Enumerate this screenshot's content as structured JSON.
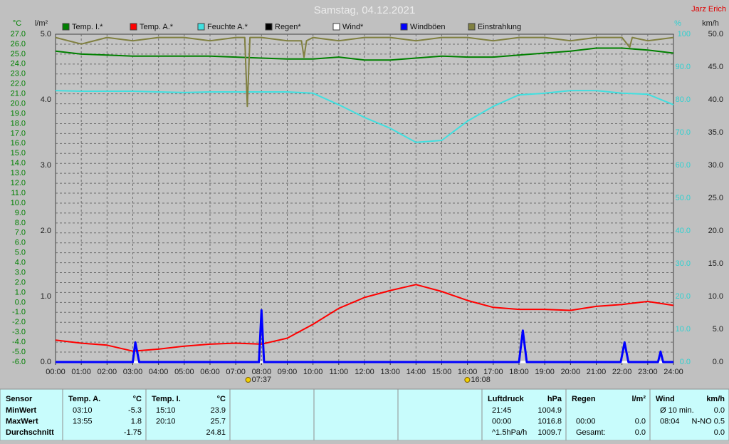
{
  "chart_data": {
    "type": "line",
    "title": "Samstag, 04.12.2021",
    "credit": "Jarz Erich",
    "ylabel": "°C",
    "y2label": "l/m²",
    "y3label": "%",
    "y4label": "km/h",
    "grid": true,
    "x": [
      0,
      1,
      2,
      3,
      4,
      5,
      6,
      7,
      8,
      9,
      10,
      11,
      12,
      13,
      14,
      15,
      16,
      17,
      18,
      19,
      20,
      21,
      22,
      23,
      24
    ],
    "xlim": [
      0,
      24
    ],
    "xticks": [
      {
        "value": 0,
        "label": "00:00"
      },
      {
        "value": 1,
        "label": "01:00"
      },
      {
        "value": 2,
        "label": "02:00"
      },
      {
        "value": 3,
        "label": "03:00"
      },
      {
        "value": 4,
        "label": "04:00"
      },
      {
        "value": 5,
        "label": "05:00"
      },
      {
        "value": 6,
        "label": "06:00"
      },
      {
        "value": 7,
        "label": "07:00"
      },
      {
        "value": 8,
        "label": "08:00"
      },
      {
        "value": 9,
        "label": "09:00"
      },
      {
        "value": 10,
        "label": "10:00"
      },
      {
        "value": 11,
        "label": "11:00"
      },
      {
        "value": 12,
        "label": "12:00"
      },
      {
        "value": 13,
        "label": "13:00"
      },
      {
        "value": 14,
        "label": "14:00"
      },
      {
        "value": 15,
        "label": "15:00"
      },
      {
        "value": 16,
        "label": "16:00"
      },
      {
        "value": 17,
        "label": "17:00"
      },
      {
        "value": 18,
        "label": "18:00"
      },
      {
        "value": 19,
        "label": "19:00"
      },
      {
        "value": 20,
        "label": "20:00"
      },
      {
        "value": 21,
        "label": "21:00"
      },
      {
        "value": 22,
        "label": "22:00"
      },
      {
        "value": 23,
        "label": "23:00"
      },
      {
        "value": 24,
        "label": "24:00"
      }
    ],
    "ylim": [
      -6,
      27
    ],
    "yticks": [
      {
        "value": 27,
        "label": "27.0"
      },
      {
        "value": 26,
        "label": "26.0"
      },
      {
        "value": 25,
        "label": "25.0"
      },
      {
        "value": 24,
        "label": "24.0"
      },
      {
        "value": 23,
        "label": "23.0"
      },
      {
        "value": 22,
        "label": "22.0"
      },
      {
        "value": 21,
        "label": "21.0"
      },
      {
        "value": 20,
        "label": "20.0"
      },
      {
        "value": 19,
        "label": "19.0"
      },
      {
        "value": 18,
        "label": "18.0"
      },
      {
        "value": 17,
        "label": "17.0"
      },
      {
        "value": 16,
        "label": "16.0"
      },
      {
        "value": 15,
        "label": "15.0"
      },
      {
        "value": 14,
        "label": "14.0"
      },
      {
        "value": 13,
        "label": "13.0"
      },
      {
        "value": 12,
        "label": "12.0"
      },
      {
        "value": 11,
        "label": "11.0"
      },
      {
        "value": 10,
        "label": "10.0"
      },
      {
        "value": 9,
        "label": "9.0"
      },
      {
        "value": 8,
        "label": "8.0"
      },
      {
        "value": 7,
        "label": "7.0"
      },
      {
        "value": 6,
        "label": "6.0"
      },
      {
        "value": 5,
        "label": "5.0"
      },
      {
        "value": 4,
        "label": "4.0"
      },
      {
        "value": 3,
        "label": "3.0"
      },
      {
        "value": 2,
        "label": "2.0"
      },
      {
        "value": 1,
        "label": "1.0"
      },
      {
        "value": 0,
        "label": "0.0"
      },
      {
        "value": -1,
        "label": "-1.0"
      },
      {
        "value": -2,
        "label": "-2.0"
      },
      {
        "value": -3,
        "label": "-3.0"
      },
      {
        "value": -4,
        "label": "-4.0"
      },
      {
        "value": -5,
        "label": "-5.0"
      },
      {
        "value": -6,
        "label": "-6.0"
      }
    ],
    "y2lim": [
      0,
      5
    ],
    "y2ticks": [
      {
        "value": 5,
        "label": "5.0"
      },
      {
        "value": 4,
        "label": "4.0"
      },
      {
        "value": 3,
        "label": "3.0"
      },
      {
        "value": 2,
        "label": "2.0"
      },
      {
        "value": 1,
        "label": "1.0"
      },
      {
        "value": 0,
        "label": "0.0"
      }
    ],
    "y3lim": [
      0,
      100
    ],
    "y3ticks": [
      100,
      {
        "value": 90,
        "label": "90.0"
      },
      {
        "value": 80,
        "label": "80.0"
      },
      {
        "value": 70,
        "label": "70.0"
      },
      {
        "value": 60,
        "label": "60.0"
      },
      {
        "value": 50,
        "label": "50.0"
      },
      {
        "value": 40,
        "label": "40.0"
      },
      {
        "value": 30,
        "label": "30.0"
      },
      {
        "value": 20,
        "label": "20.0"
      },
      {
        "value": 10,
        "label": "10.0"
      },
      {
        "value": 0,
        "label": "0.0"
      }
    ],
    "y4lim": [
      0,
      50
    ],
    "y4ticks": [
      {
        "value": 50,
        "label": "50.0"
      },
      {
        "value": 45,
        "label": "45.0"
      },
      {
        "value": 40,
        "label": "40.0"
      },
      {
        "value": 35,
        "label": "35.0"
      },
      {
        "value": 30,
        "label": "30.0"
      },
      {
        "value": 25,
        "label": "25.0"
      },
      {
        "value": 20,
        "label": "20.0"
      },
      {
        "value": 15,
        "label": "15.0"
      },
      {
        "value": 10,
        "label": "10.0"
      },
      {
        "value": 5,
        "label": "5.0"
      },
      {
        "value": 0,
        "label": "0.0"
      }
    ],
    "series": [
      {
        "name": "Temp. I.*",
        "color": "#008000",
        "axis": "y",
        "values": [
          25.3,
          25.0,
          24.9,
          24.8,
          24.8,
          24.8,
          24.8,
          24.7,
          24.6,
          24.5,
          24.5,
          24.7,
          24.4,
          24.4,
          24.6,
          24.8,
          24.7,
          24.7,
          24.9,
          25.1,
          25.3,
          25.6,
          25.6,
          25.4,
          25.1
        ]
      },
      {
        "name": "Temp. A.*",
        "color": "#ff0000",
        "axis": "y",
        "values": [
          -3.8,
          -4.1,
          -4.3,
          -4.9,
          -4.7,
          -4.4,
          -4.2,
          -4.1,
          -4.2,
          -3.6,
          -2.2,
          -0.6,
          0.5,
          1.2,
          1.8,
          1.1,
          0.2,
          -0.5,
          -0.7,
          -0.7,
          -0.8,
          -0.4,
          -0.2,
          0.1,
          -0.3
        ]
      },
      {
        "name": "Feuchte A.*",
        "color": "#40e0e0",
        "axis": "y3",
        "values": [
          82.8,
          82.6,
          82.6,
          82.6,
          82.4,
          82.2,
          82.4,
          82.4,
          82.4,
          82.4,
          82.0,
          78.5,
          74.6,
          71.3,
          67.0,
          67.6,
          73.5,
          78.0,
          81.5,
          82.0,
          82.8,
          82.8,
          82.0,
          81.7,
          78.5
        ]
      },
      {
        "name": "Regen*",
        "color": "#000000",
        "axis": "y2",
        "x": [
          0,
          24
        ],
        "values": [
          0,
          0
        ]
      },
      {
        "name": "Wind*",
        "color": "#ffffff",
        "axis": "y4",
        "x": [
          0,
          24
        ],
        "values": [
          0,
          0
        ]
      },
      {
        "name": "Windböen",
        "color": "#0000ff",
        "axis": "y4",
        "x": [
          0,
          3.0,
          3.1,
          3.25,
          7.9,
          8.0,
          8.1,
          18.0,
          18.15,
          18.3,
          21.95,
          22.1,
          22.25,
          23.4,
          23.5,
          23.6,
          24
        ],
        "values": [
          0,
          0,
          3.0,
          0,
          0,
          7.9,
          0,
          0,
          4.8,
          0,
          0,
          3.0,
          0,
          0,
          1.6,
          0,
          0
        ]
      },
      {
        "name": "Einstrahlung",
        "color": "#808040",
        "axis": "y3",
        "x": [
          0,
          1,
          2,
          3,
          4,
          5,
          6,
          7,
          7.35,
          7.45,
          7.55,
          8,
          9,
          9.55,
          9.65,
          9.75,
          10,
          11,
          12,
          13,
          14,
          15,
          16,
          17,
          18,
          19,
          20,
          21,
          22,
          22.3,
          22.4,
          23,
          24
        ],
        "values": [
          99,
          97,
          99,
          98,
          99,
          99,
          98,
          99,
          99,
          78,
          99,
          99,
          98,
          98,
          93,
          98,
          99,
          98,
          99,
          99,
          98,
          99,
          99,
          98,
          99,
          99,
          98,
          99,
          99,
          96,
          99,
          98,
          99
        ]
      }
    ],
    "annotations": [
      {
        "x": 7.62,
        "label": "07:37"
      },
      {
        "x": 16.13,
        "label": "16:08"
      }
    ]
  },
  "table": {
    "panels": [
      {
        "header": [
          "Sensor"
        ],
        "rows": [
          [
            "MinWert"
          ],
          [
            "MaxWert"
          ],
          [
            "Durchschnitt"
          ]
        ]
      },
      {
        "header": [
          "Temp. A.",
          "°C"
        ],
        "rows": [
          [
            "03:10",
            "-5.3"
          ],
          [
            "13:55",
            "1.8"
          ],
          [
            null,
            "-1.75"
          ]
        ]
      },
      {
        "header": [
          "Temp. I.",
          "°C"
        ],
        "rows": [
          [
            "15:10",
            "23.9"
          ],
          [
            "20:10",
            "25.7"
          ],
          [
            null,
            "24.81"
          ]
        ]
      },
      {
        "header": [
          "Luftdruck",
          "hPa"
        ],
        "rows": [
          [
            "21:45",
            "1004.9"
          ],
          [
            "00:00",
            "1016.8"
          ],
          [
            "^1.5hPa/h",
            "1009.7"
          ]
        ]
      },
      {
        "header": [
          "Regen",
          "l/m²"
        ],
        "rows": [
          [
            null,
            null
          ],
          [
            "00:00",
            "0.0"
          ],
          [
            "Gesamt:",
            "0.0"
          ]
        ]
      },
      {
        "header": [
          "Wind",
          "km/h"
        ],
        "rows": [
          [
            "Ø 10 min.",
            "0.0"
          ],
          [
            "08:04",
            "N-NO 0.5"
          ],
          [
            null,
            "0.0"
          ]
        ]
      }
    ]
  }
}
